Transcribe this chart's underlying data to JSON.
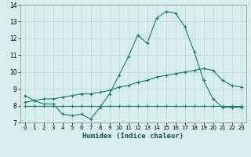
{
  "title": "",
  "xlabel": "Humidex (Indice chaleur)",
  "x_values": [
    0,
    1,
    2,
    3,
    4,
    5,
    6,
    7,
    8,
    9,
    10,
    11,
    12,
    13,
    14,
    15,
    16,
    17,
    18,
    19,
    20,
    21,
    22,
    23
  ],
  "line1": [
    8.6,
    8.3,
    8.1,
    8.1,
    7.5,
    7.4,
    7.5,
    7.2,
    7.9,
    8.7,
    9.8,
    10.9,
    12.2,
    11.7,
    13.2,
    13.6,
    13.5,
    12.7,
    11.2,
    9.5,
    8.4,
    7.9,
    7.9,
    7.9
  ],
  "line2": [
    8.2,
    8.3,
    8.4,
    8.4,
    8.5,
    8.6,
    8.7,
    8.7,
    8.8,
    8.9,
    9.1,
    9.2,
    9.4,
    9.5,
    9.7,
    9.8,
    9.9,
    10.0,
    10.1,
    10.2,
    10.1,
    9.5,
    9.2,
    9.1
  ],
  "line3": [
    8.0,
    8.0,
    8.0,
    8.0,
    8.0,
    8.0,
    8.0,
    8.0,
    8.0,
    8.0,
    8.0,
    8.0,
    8.0,
    8.0,
    8.0,
    8.0,
    8.0,
    8.0,
    8.0,
    8.0,
    8.0,
    8.0,
    8.0,
    8.0
  ],
  "line_color": "#1a7a6e",
  "bg_color": "#d8eeee",
  "grid_color": "#b8d8d8",
  "ylim": [
    7.0,
    14.0
  ],
  "xlim": [
    -0.5,
    23.5
  ],
  "yticks": [
    7,
    8,
    9,
    10,
    11,
    12,
    13,
    14
  ],
  "xticks": [
    0,
    1,
    2,
    3,
    4,
    5,
    6,
    7,
    8,
    9,
    10,
    11,
    12,
    13,
    14,
    15,
    16,
    17,
    18,
    19,
    20,
    21,
    22,
    23
  ]
}
